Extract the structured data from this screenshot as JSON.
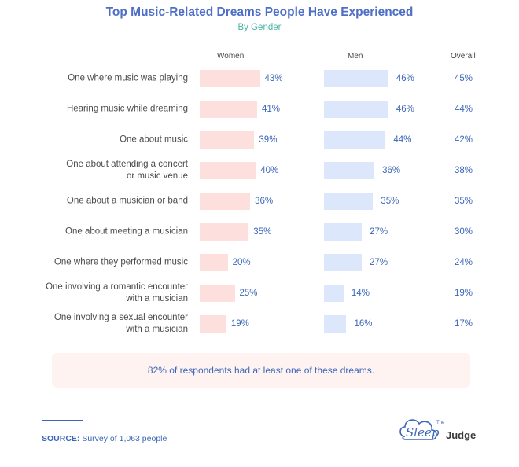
{
  "title": "Top Music-Related Dreams People Have Experienced",
  "subtitle": "By Gender",
  "columns": {
    "women": "Women",
    "men": "Men",
    "overall": "Overall"
  },
  "colors": {
    "women_bar": "#fde0de",
    "men_bar": "#dde7fc",
    "value_text": "#3c67b8",
    "title": "#4f6fc6",
    "subtitle": "#45b5a5"
  },
  "chart_data": {
    "type": "bar",
    "title": "Top Music-Related Dreams People Have Experienced",
    "subtitle": "By Gender",
    "categories": [
      [
        "One where music was playing"
      ],
      [
        "Hearing music while dreaming"
      ],
      [
        "One about music"
      ],
      [
        "One about attending a concert",
        "or music venue"
      ],
      [
        "One about a musician or band"
      ],
      [
        "One about meeting a musician"
      ],
      [
        "One where they performed music"
      ],
      [
        "One involving a romantic encounter",
        "with a musician"
      ],
      [
        "One involving a sexual encounter",
        "with a musician"
      ]
    ],
    "series": [
      {
        "name": "Women",
        "values": [
          43,
          41,
          39,
          40,
          36,
          35,
          20,
          25,
          19
        ],
        "labels": [
          "43%",
          "41%",
          "39%",
          "40%",
          "36%",
          "35%",
          "20%",
          "25%",
          "19%"
        ]
      },
      {
        "name": "Men",
        "values": [
          46,
          46,
          44,
          36,
          35,
          27,
          27,
          14,
          16
        ],
        "labels": [
          "46%",
          "46%",
          "44%",
          "36%",
          "35%",
          "27%",
          "27%",
          "14%",
          "16%"
        ]
      },
      {
        "name": "Overall",
        "values": [
          45,
          44,
          42,
          38,
          35,
          30,
          24,
          19,
          17
        ],
        "labels": [
          "45%",
          "44%",
          "42%",
          "38%",
          "35%",
          "30%",
          "24%",
          "19%",
          "17%"
        ]
      }
    ],
    "unit": "%"
  },
  "footnote": "82% of respondents had at least one of these dreams.",
  "source": {
    "label": "SOURCE:",
    "text": " Survey of 1,063 people"
  },
  "logo": {
    "text_1": "Sleep",
    "text_2": "Judge",
    "small": "The"
  }
}
